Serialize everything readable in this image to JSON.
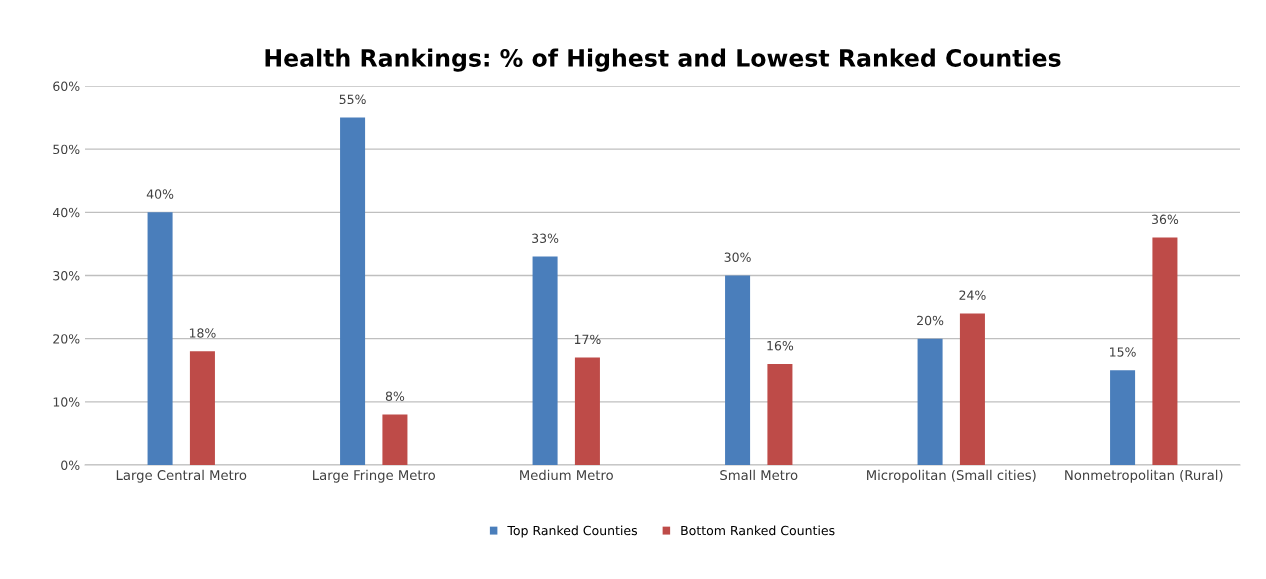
{
  "chart_data": {
    "type": "bar",
    "title": "Health Rankings: % of Highest and Lowest Ranked Counties",
    "categories": [
      "Large Central Metro",
      "Large Fringe Metro",
      "Medium Metro",
      "Small Metro",
      "Micropolitan (Small cities)",
      "Nonmetropolitan (Rural)"
    ],
    "series": [
      {
        "name": "Top Ranked Counties",
        "color": "#4a7ebb",
        "values": [
          40,
          55,
          33,
          30,
          20,
          15
        ],
        "value_labels": [
          "40%",
          "55%",
          "33%",
          "30%",
          "20%",
          "15%"
        ]
      },
      {
        "name": "Bottom Ranked Counties",
        "color": "#be4b48",
        "values": [
          18,
          8,
          17,
          16,
          24,
          36
        ],
        "value_labels": [
          "18%",
          "8%",
          "17%",
          "16%",
          "24%",
          "36%"
        ]
      }
    ],
    "ylim": [
      0,
      60
    ],
    "yticks": [
      {
        "value": 0,
        "label": "0%"
      },
      {
        "value": 10,
        "label": "10%"
      },
      {
        "value": 20,
        "label": "20%"
      },
      {
        "value": 30,
        "label": "30%"
      },
      {
        "value": 40,
        "label": "40%"
      },
      {
        "value": 50,
        "label": "50%"
      },
      {
        "value": 60,
        "label": "60%"
      }
    ],
    "grid": "y",
    "legend": "bottom"
  }
}
